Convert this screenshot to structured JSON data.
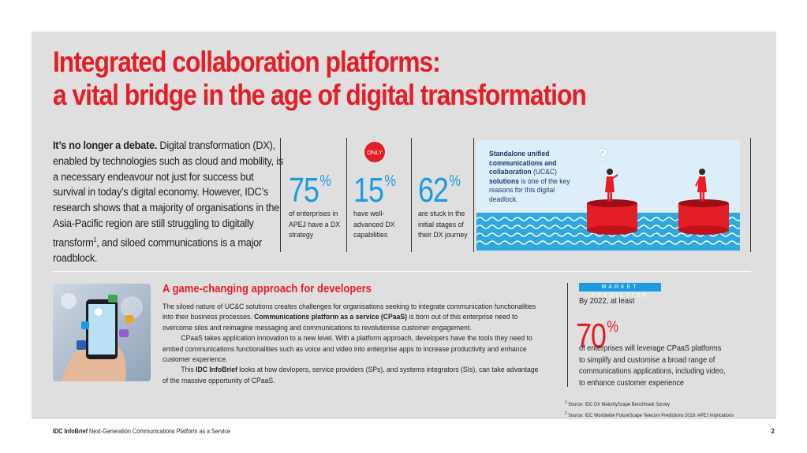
{
  "title": {
    "line1": "Integrated collaboration platforms:",
    "line2": "a vital bridge in the age of digital transformation"
  },
  "intro": {
    "lead": "It’s no longer a debate.",
    "text_a": " Digital transformation (DX), enabled by technologies such as cloud and mobility, is a necessary endeavour not just for success but survival in today’s digital economy. However, IDC’s research shows that a majority of organisations in the Asia-Pacific region are still struggling to digitally transform",
    "footnote_ref": "1",
    "text_b": ", and siloed communications is a major roadblock."
  },
  "stats": [
    {
      "value": "75",
      "unit": "%",
      "caption": "of enterprises in APEJ have a DX strategy"
    },
    {
      "value": "15",
      "unit": "%",
      "caption": "have well-advanced DX capabilities"
    },
    {
      "value": "62",
      "unit": "%",
      "caption": "are stuck in the initial stages of their DX journey"
    }
  ],
  "only_badge": "ONLY",
  "illustration": {
    "bold": "Standalone unified communications and collaboration",
    "mid": " (UC&C) ",
    "bold2": "solutions",
    "rest": " is one of the key reasons for this digital deadlock.",
    "question_mark": "?"
  },
  "developers": {
    "title": "A game-changing approach for developers",
    "p1_a": "The siloed nature of UC&C solutions creates challenges for organisations seeking to integrate communication functionalities into their business processes. ",
    "p1_bold": "Communications platform as a service (CPaaS)",
    "p1_b": " is born out of this enterprise need to overcome silos and reimagine messaging and communications to revolutionise customer engagement.",
    "p2": "CPaaS takes application innovation to a new level. With a platform approach, developers have the tools they need to embed communications functionalities such as voice and video into enterprise apps to increase productivity and enhance customer experience.",
    "p3_a": "This ",
    "p3_bold": "IDC InfoBrief",
    "p3_b": " looks at how devlopers, service providers (SPs), and systems integrators (SIs), can take advantage of the massive opportunity of CPaaS."
  },
  "market_prediction": {
    "label": "MARKET PREDICTION",
    "by": "By 2022, at least",
    "value": "70",
    "unit": "%",
    "desc": "of enterprises will leverage CPaaS platforms to simplify and customise a broad range of communications applications, including video, to enhance customer experience"
  },
  "sources": [
    {
      "n": "1",
      "text": " Source: IDC DX MaturityScape Benchmark Survey"
    },
    {
      "n": "2",
      "text": " Source: IDC Worldwide FutureScape Telecom Predictions 2019: APEJ Implications"
    }
  ],
  "footer": {
    "brand": "IDC InfoBrief",
    "text": "  Next-Generation Communications Platform as a Service",
    "page": "2"
  },
  "colors": {
    "accent_red": "#e41e26",
    "accent_blue": "#1b9be0",
    "panel_bg": "#e0dfe0"
  }
}
